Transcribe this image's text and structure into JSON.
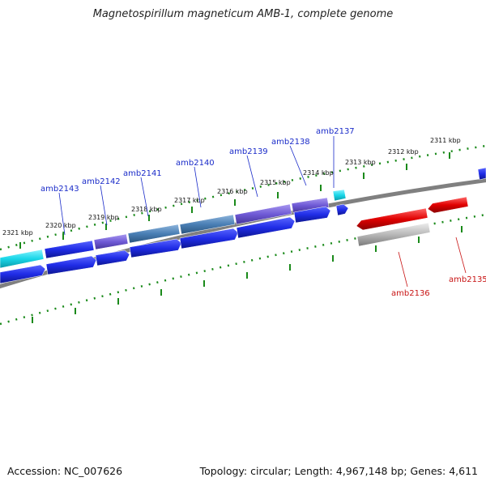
{
  "title": "Magnetospirillum magneticum AMB-1, complete genome",
  "footer": {
    "accession": "Accession: NC_007626",
    "topology": "Topology: circular; Length: 4,967,148 bp; Genes: 4,611"
  },
  "colors": {
    "forward_gene": "#1f2ce6",
    "reverse_gene": "#e00000",
    "cyan_feature": "#19d6e8",
    "purple_feature": "#6f5ad6",
    "steel_feature": "#4a7fb5",
    "grey_feature": "#b8b8b8",
    "backbone": "#808080",
    "tick": "#1a8a1a"
  },
  "ticks": [
    {
      "label": "2321 kbp"
    },
    {
      "label": "2320 kbp"
    },
    {
      "label": "2319 kbp"
    },
    {
      "label": "2318 kbp"
    },
    {
      "label": "2317 kbp"
    },
    {
      "label": "2316 kbp"
    },
    {
      "label": "2315 kbp"
    },
    {
      "label": "2314 kbp"
    },
    {
      "label": "2313 kbp"
    },
    {
      "label": "2312 kbp"
    },
    {
      "label": "2311 kbp"
    }
  ],
  "genes_forward": [
    {
      "name": "amb2143"
    },
    {
      "name": "amb2142"
    },
    {
      "name": "amb2141"
    },
    {
      "name": "amb2140"
    },
    {
      "name": "amb2139"
    },
    {
      "name": "amb2138"
    },
    {
      "name": "amb2137"
    }
  ],
  "genes_reverse": [
    {
      "name": "amb2136"
    },
    {
      "name": "amb2135"
    }
  ]
}
